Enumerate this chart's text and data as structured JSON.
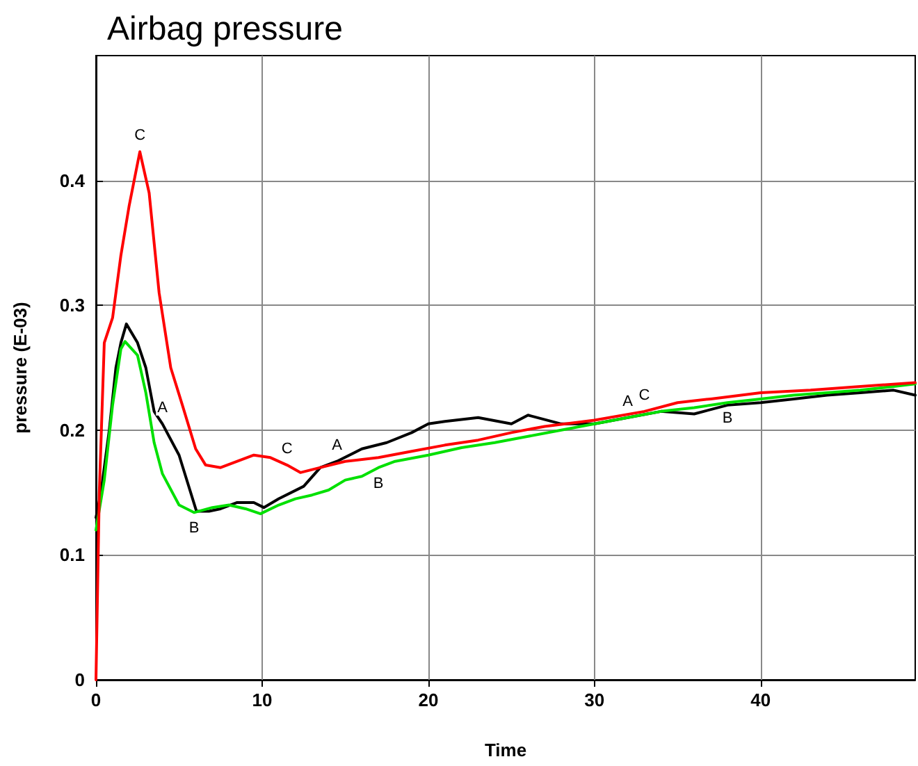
{
  "chart_data": {
    "type": "line",
    "title": "Airbag pressure",
    "xlabel": "Time",
    "ylabel": "pressure (E-03)",
    "xlim": [
      0,
      49.3
    ],
    "ylim": [
      0,
      0.5
    ],
    "xticks": [
      0,
      10,
      20,
      30,
      40
    ],
    "yticks": [
      0,
      0.1,
      0.2,
      0.3,
      0.4
    ],
    "grid": true,
    "legend": false,
    "marker": "none",
    "line_style": "solid",
    "series": [
      {
        "name": "A",
        "color": "#000000",
        "x": [
          0,
          0.3,
          0.8,
          1.2,
          1.5,
          1.83,
          2.5,
          3,
          3.5,
          4,
          5,
          6.05,
          6.8,
          7.5,
          8.5,
          9.5,
          10.1,
          11,
          12.5,
          13.5,
          14.5,
          16,
          17.5,
          19,
          20,
          21,
          23,
          25,
          26,
          28,
          30,
          32,
          34,
          36,
          38,
          40,
          42,
          44,
          46,
          48,
          49.3
        ],
        "values": [
          0.13,
          0.15,
          0.2,
          0.25,
          0.27,
          0.285,
          0.27,
          0.25,
          0.215,
          0.205,
          0.18,
          0.135,
          0.135,
          0.137,
          0.142,
          0.142,
          0.138,
          0.145,
          0.155,
          0.17,
          0.175,
          0.185,
          0.19,
          0.198,
          0.205,
          0.207,
          0.21,
          0.205,
          0.212,
          0.205,
          0.205,
          0.21,
          0.215,
          0.213,
          0.22,
          0.222,
          0.225,
          0.228,
          0.23,
          0.232,
          0.228
        ]
      },
      {
        "name": "B",
        "color": "#00e000",
        "x": [
          0,
          0.5,
          1,
          1.5,
          1.75,
          2.5,
          3,
          3.5,
          4,
          5,
          5.9,
          7,
          8,
          9,
          9.9,
          11,
          12,
          13,
          14,
          15,
          16,
          17,
          18,
          20,
          22,
          24,
          26,
          28,
          30,
          32,
          34,
          36,
          38,
          40,
          42,
          44,
          46,
          48,
          49.3
        ],
        "values": [
          0.12,
          0.16,
          0.22,
          0.265,
          0.271,
          0.26,
          0.23,
          0.19,
          0.165,
          0.14,
          0.134,
          0.138,
          0.14,
          0.137,
          0.133,
          0.14,
          0.145,
          0.148,
          0.152,
          0.16,
          0.163,
          0.17,
          0.175,
          0.18,
          0.186,
          0.19,
          0.195,
          0.2,
          0.205,
          0.21,
          0.215,
          0.218,
          0.222,
          0.225,
          0.228,
          0.23,
          0.232,
          0.235,
          0.237
        ]
      },
      {
        "name": "C",
        "color": "#ff0000",
        "x": [
          0,
          0.2,
          0.5,
          1,
          1.5,
          2,
          2.64,
          3.2,
          3.8,
          4.5,
          5.2,
          6,
          6.6,
          7.5,
          8.5,
          9.5,
          10.5,
          11.5,
          12.3,
          13.5,
          15,
          17,
          19,
          21,
          23,
          25,
          27,
          30,
          33,
          35,
          37,
          40,
          43,
          46,
          49.3
        ],
        "values": [
          0,
          0.15,
          0.27,
          0.29,
          0.34,
          0.38,
          0.423,
          0.39,
          0.31,
          0.25,
          0.22,
          0.185,
          0.172,
          0.17,
          0.175,
          0.18,
          0.178,
          0.172,
          0.166,
          0.17,
          0.175,
          0.178,
          0.183,
          0.188,
          0.192,
          0.198,
          0.203,
          0.208,
          0.215,
          0.222,
          0.225,
          0.23,
          0.232,
          0.235,
          0.238
        ]
      }
    ]
  }
}
